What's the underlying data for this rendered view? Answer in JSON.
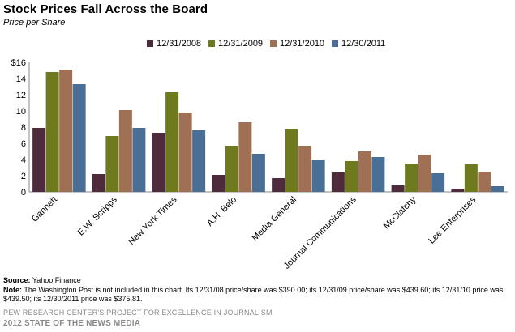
{
  "title": "Stock Prices Fall Across the Board",
  "subtitle": "Price per Share",
  "colors": [
    "#4d2b3c",
    "#6e7a1d",
    "#a07055",
    "#4a6f97"
  ],
  "chart_data": {
    "type": "bar",
    "categories": [
      "Gannett",
      "E.W. Scripps",
      "New York Times",
      "A.H. Belo",
      "Media General",
      "Journal Communications",
      "McClatchy",
      "Lee Enterprises"
    ],
    "series": [
      {
        "name": "12/31/2008",
        "values": [
          7.9,
          2.2,
          7.3,
          2.1,
          1.7,
          2.4,
          0.8,
          0.4
        ]
      },
      {
        "name": "12/31/2009",
        "values": [
          14.8,
          6.9,
          12.3,
          5.7,
          7.8,
          3.8,
          3.5,
          3.4
        ]
      },
      {
        "name": "12/31/2010",
        "values": [
          15.1,
          10.1,
          9.8,
          8.6,
          5.7,
          5.0,
          4.6,
          2.5
        ]
      },
      {
        "name": "12/30/2011",
        "values": [
          13.3,
          7.9,
          7.6,
          4.7,
          4.0,
          4.3,
          2.3,
          0.7
        ]
      }
    ],
    "yticks": [
      "$16",
      "14",
      "12",
      "10",
      "8",
      "6",
      "4",
      "2",
      "0"
    ],
    "ylim": [
      0,
      16
    ],
    "grid": false,
    "legend": "top-center"
  },
  "footer": {
    "source_label": "Source:",
    "source_text": " Yahoo Finance",
    "note_label": "Note:",
    "note_text": " The Washington Post is not included in this chart. Its 12/31/08 price/share was $390.00; its 12/31/09 price/share was $439.60; its 12/31/10 price was $439.50; its 12/30/2011 price was $375.81.",
    "pew": "PEW RESEARCH CENTER'S PROJECT FOR EXCELLENCE IN JOURNALISM",
    "sonm": "2012 STATE OF THE NEWS MEDIA"
  }
}
